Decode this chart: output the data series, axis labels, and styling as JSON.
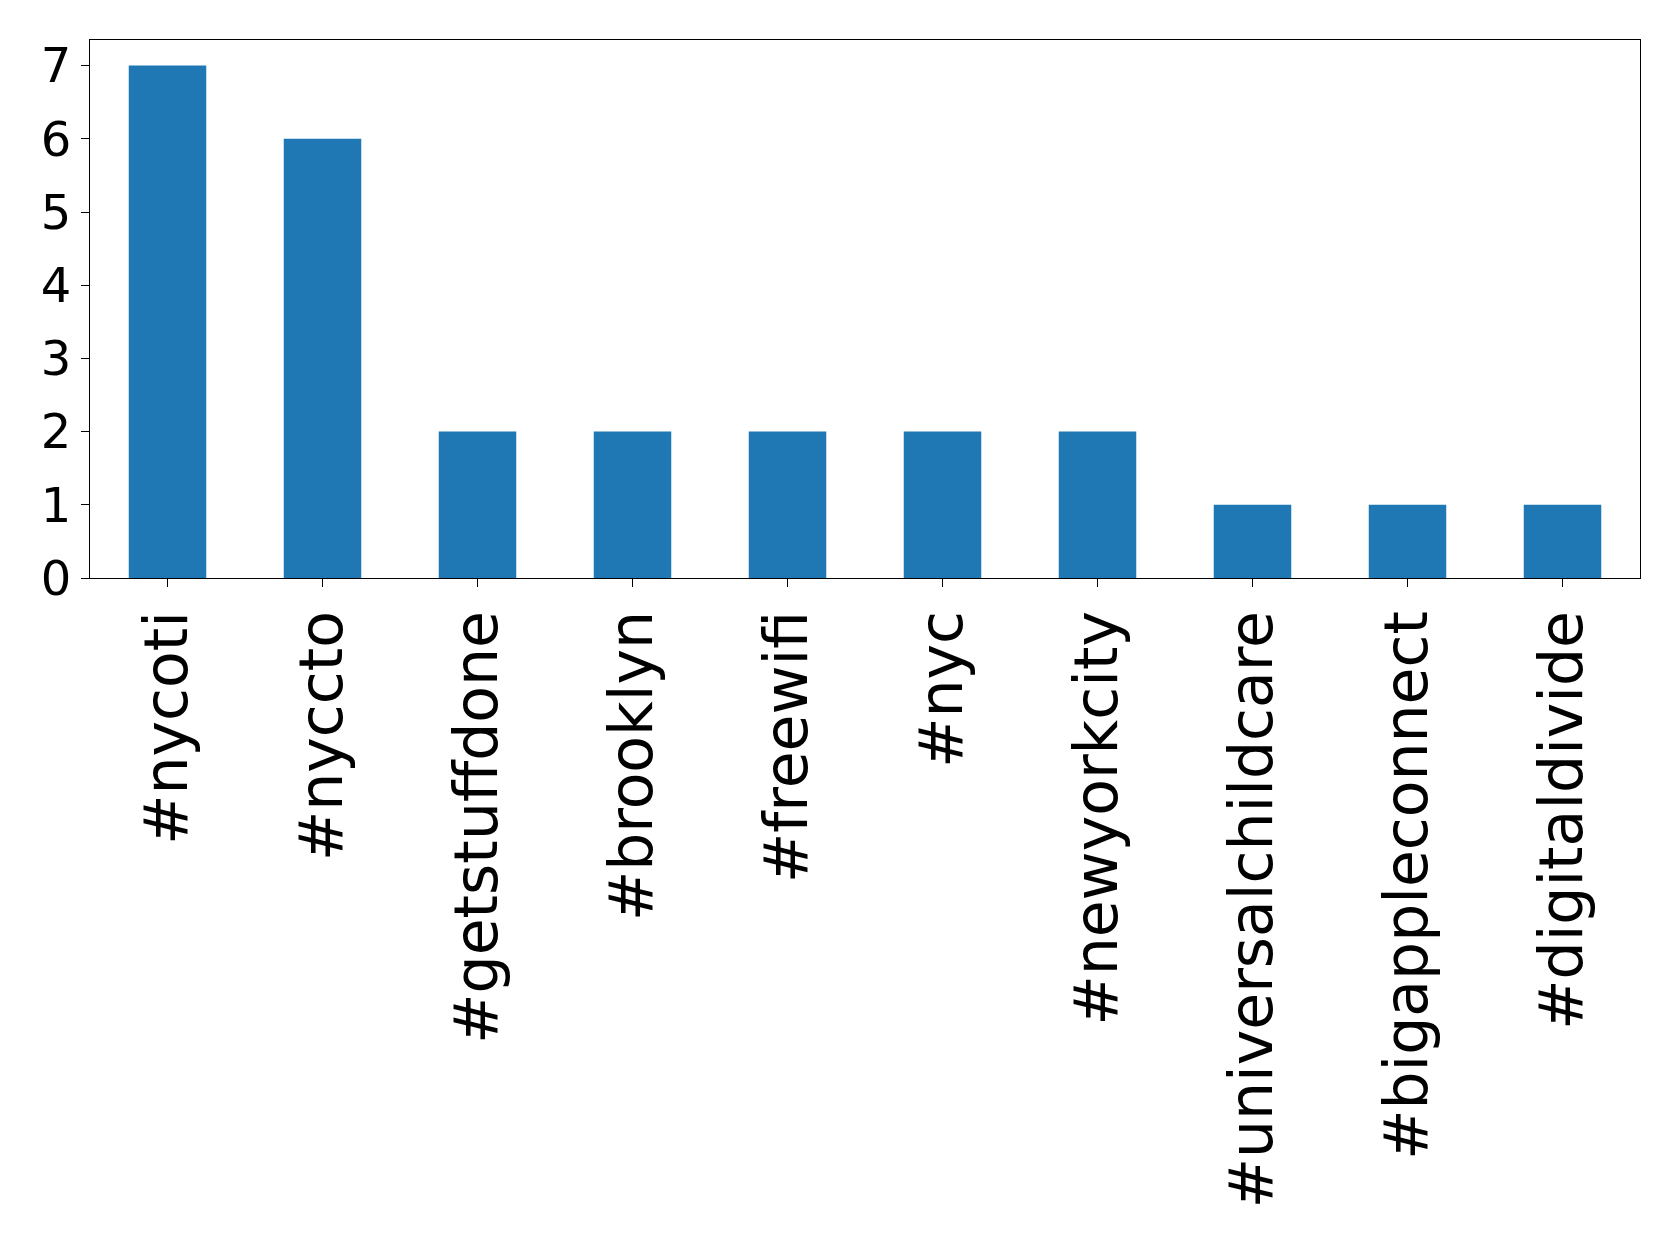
{
  "chart_data": {
    "type": "bar",
    "categories": [
      "#nycoti",
      "#nyccto",
      "#getstuffdone",
      "#brooklyn",
      "#freewifi",
      "#nyc",
      "#newyorkcity",
      "#universalchildcare",
      "#bigappleconnect",
      "#digitaldivide"
    ],
    "values": [
      7,
      6,
      2,
      2,
      2,
      2,
      2,
      1,
      1,
      1
    ],
    "color": "#1f77b4",
    "ylim": [
      0,
      7.35
    ],
    "yticks": [
      0,
      1,
      2,
      3,
      4,
      5,
      6,
      7
    ]
  }
}
